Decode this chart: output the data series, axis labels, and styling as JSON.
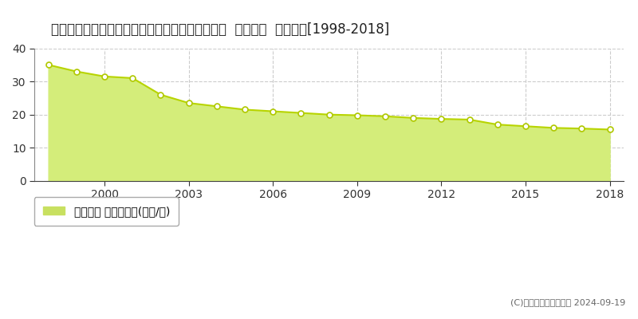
{
  "title": "愛知県知多郡武豊町大字東大高字北浜田１６番外  公示地価  地価推移[1998-2018]",
  "years": [
    1998,
    1999,
    2000,
    2001,
    2002,
    2003,
    2004,
    2005,
    2006,
    2007,
    2008,
    2009,
    2010,
    2011,
    2012,
    2013,
    2014,
    2015,
    2016,
    2017,
    2018
  ],
  "values": [
    35.0,
    33.0,
    31.5,
    31.0,
    26.0,
    23.5,
    22.5,
    21.5,
    21.0,
    20.5,
    20.0,
    19.8,
    19.5,
    19.0,
    18.7,
    18.5,
    17.0,
    16.5,
    16.0,
    15.8,
    15.5
  ],
  "fill_color": "#d4ed7a",
  "line_color": "#b8d400",
  "marker_color": "#ffffff",
  "marker_edge_color": "#b0c800",
  "background_color": "#ffffff",
  "plot_bg_color": "#ffffff",
  "grid_color": "#cccccc",
  "ylim": [
    0,
    40
  ],
  "xlim": [
    1997.5,
    2018.5
  ],
  "yticks": [
    0,
    10,
    20,
    30,
    40
  ],
  "xticks": [
    2000,
    2003,
    2006,
    2009,
    2012,
    2015,
    2018
  ],
  "legend_label": "公示地価 平均坪単価(万円/坪)",
  "legend_color": "#c8e060",
  "copyright": "(C)土地価格ドットコム 2024-09-19",
  "title_fontsize": 12,
  "tick_fontsize": 10,
  "legend_fontsize": 10
}
